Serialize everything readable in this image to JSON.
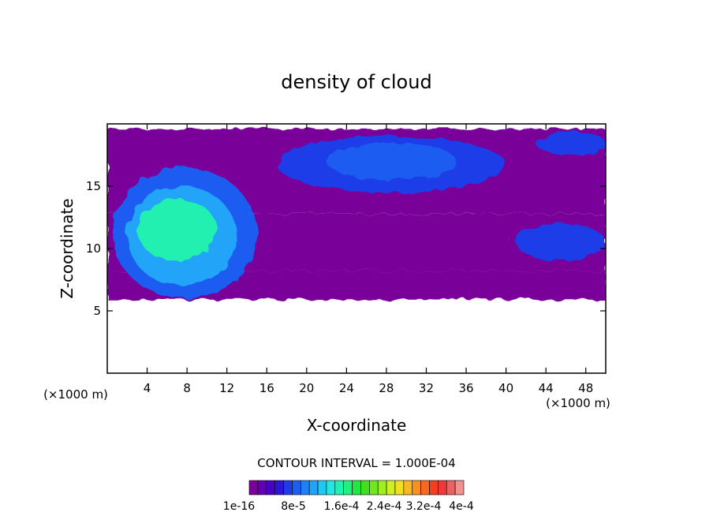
{
  "chart_data": {
    "type": "heatmap",
    "title": "density of cloud",
    "xlabel": "X-coordinate",
    "ylabel": "Z-coordinate",
    "x_unit": "(×1000 m)",
    "y_unit": "(×1000 m)",
    "xlim": [
      0,
      50
    ],
    "ylim": [
      0,
      20
    ],
    "x_ticks": [
      4,
      8,
      12,
      16,
      20,
      24,
      28,
      32,
      36,
      40,
      44,
      48
    ],
    "y_ticks": [
      5,
      10,
      15
    ],
    "contour_interval_label": "CONTOUR INTERVAL = 1.000E-04",
    "colorbar": {
      "labels": [
        "1e-16",
        "8e-5",
        "1.6e-4",
        "2.4e-4",
        "3.2e-4",
        "4e-4"
      ],
      "min": 1e-16,
      "max": 0.0004,
      "colors": [
        "#7a009a",
        "#6000b0",
        "#4a00c8",
        "#2c14d8",
        "#1f3ce8",
        "#1f5cf0",
        "#2080f8",
        "#20a4f8",
        "#20c8f0",
        "#20e8e0",
        "#20f0b0",
        "#20f080",
        "#20e840",
        "#40e020",
        "#70e820",
        "#a0f020",
        "#d0f020",
        "#f0e020",
        "#f8b820",
        "#f89020",
        "#f86820",
        "#f04020",
        "#f03838",
        "#f06060",
        "#f09090"
      ]
    },
    "layers": [
      {
        "kind": "band",
        "x": [
          0,
          50
        ],
        "z": [
          5.9,
          8.2
        ],
        "level": "1e-16"
      },
      {
        "kind": "band",
        "x": [
          0,
          50
        ],
        "z": [
          8.2,
          12.8
        ],
        "level": "1e-16"
      },
      {
        "kind": "band",
        "x": [
          0,
          50
        ],
        "z": [
          12.8,
          19.6
        ],
        "level": "1e-16"
      },
      {
        "kind": "blob",
        "x": [
          0.5,
          15
        ],
        "z": [
          6,
          16.5
        ],
        "level": "8e-5"
      },
      {
        "kind": "blob",
        "x": [
          2,
          13
        ],
        "z": [
          7,
          15
        ],
        "level": "1.2e-4"
      },
      {
        "kind": "blob",
        "x": [
          3,
          11
        ],
        "z": [
          9,
          14
        ],
        "level": "1.6e-4"
      },
      {
        "kind": "blob",
        "x": [
          17,
          40
        ],
        "z": [
          14.5,
          19
        ],
        "level": "6e-5"
      },
      {
        "kind": "blob",
        "x": [
          22,
          35
        ],
        "z": [
          15.5,
          18.5
        ],
        "level": "8e-5"
      },
      {
        "kind": "blob",
        "x": [
          41,
          50
        ],
        "z": [
          9,
          12
        ],
        "level": "6e-5"
      },
      {
        "kind": "blob",
        "x": [
          43,
          50
        ],
        "z": [
          17.5,
          19.4
        ],
        "level": "6e-5"
      }
    ]
  }
}
